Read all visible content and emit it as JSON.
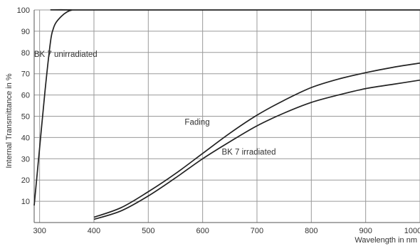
{
  "chart_data": {
    "type": "line",
    "title": "",
    "xlabel": "Wavelength in nm",
    "ylabel": "Internal Transmittance in %",
    "xlim": [
      290,
      1000
    ],
    "ylim": [
      0,
      100
    ],
    "grid": true,
    "x_ticks": [
      "300",
      "400",
      "500",
      "600",
      "700",
      "800",
      "900",
      "1000"
    ],
    "y_ticks": [
      "10",
      "20",
      "30",
      "40",
      "50",
      "60",
      "70",
      "80",
      "90",
      "100"
    ],
    "colors": {
      "line": "#222222",
      "grid": "#9a9a9a",
      "text": "#333333"
    },
    "series": [
      {
        "name": "BK 7 unirradiated",
        "x": [
          290,
          300,
          310,
          320,
          325,
          330,
          340,
          350,
          360,
          370,
          1000
        ],
        "y": [
          8,
          35,
          62,
          85,
          91,
          94,
          97,
          99,
          100,
          100,
          100
        ]
      },
      {
        "name": "Fading",
        "x": [
          400,
          450,
          500,
          550,
          600,
          650,
          700,
          750,
          800,
          850,
          900,
          950,
          1000
        ],
        "y": [
          2.5,
          7,
          14.5,
          23,
          32.5,
          42,
          50.5,
          57.5,
          63.5,
          67.5,
          70.5,
          73,
          75
        ]
      },
      {
        "name": "BK 7 irradiated",
        "x": [
          400,
          450,
          500,
          550,
          600,
          650,
          700,
          750,
          800,
          850,
          900,
          950,
          1000
        ],
        "y": [
          1.5,
          5.5,
          12.5,
          21,
          30,
          38,
          45.5,
          51.5,
          56.5,
          60,
          63,
          65,
          67
        ]
      }
    ],
    "annotations": [
      {
        "text": "BK 7 unirradiated",
        "series": "BK 7 unirradiated",
        "x": 348,
        "y": 78
      },
      {
        "text": "Fading",
        "series": "Fading",
        "x": 590,
        "y": 46
      },
      {
        "text": "BK 7 irradiated",
        "series": "BK 7 irradiated",
        "x": 685,
        "y": 32
      }
    ]
  }
}
